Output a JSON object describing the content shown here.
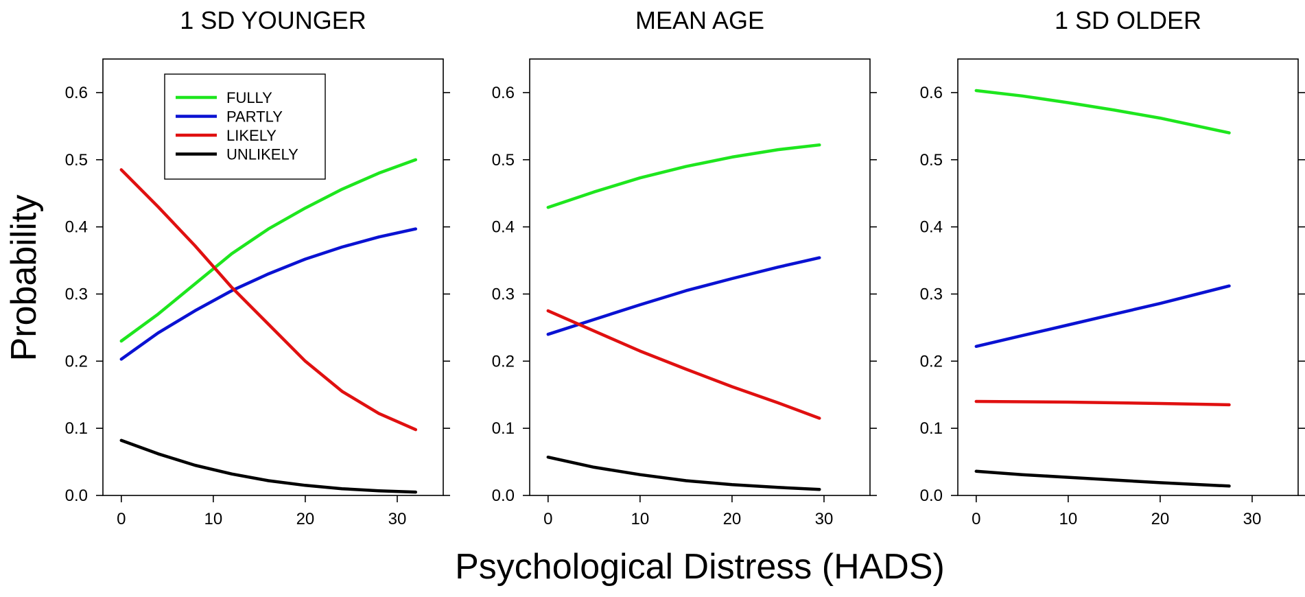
{
  "figure": {
    "ylabel": "Probability",
    "xlabel": "Psychological Distress (HADS)"
  },
  "legend": {
    "entries": [
      {
        "label": "FULLY",
        "color": "#1ee61e"
      },
      {
        "label": "PARTLY",
        "color": "#0a12d2"
      },
      {
        "label": "LIKELY",
        "color": "#e01010"
      },
      {
        "label": "UNLIKELY",
        "color": "#000000"
      }
    ]
  },
  "chart_data": [
    {
      "type": "line",
      "title": "1 SD YOUNGER",
      "xlim": [
        -2,
        35
      ],
      "ylim": [
        0,
        0.65
      ],
      "xticks": [
        0,
        10,
        20,
        30
      ],
      "yticks": [
        0.0,
        0.1,
        0.2,
        0.3,
        0.4,
        0.5,
        0.6
      ],
      "series": [
        {
          "name": "FULLY",
          "color": "#1ee61e",
          "x": [
            0,
            4,
            8,
            12,
            16,
            20,
            24,
            28,
            32
          ],
          "y": [
            0.23,
            0.27,
            0.315,
            0.36,
            0.397,
            0.428,
            0.456,
            0.48,
            0.5
          ]
        },
        {
          "name": "PARTLY",
          "color": "#0a12d2",
          "x": [
            0,
            4,
            8,
            12,
            16,
            20,
            24,
            28,
            32
          ],
          "y": [
            0.203,
            0.242,
            0.275,
            0.305,
            0.33,
            0.352,
            0.37,
            0.385,
            0.397
          ]
        },
        {
          "name": "LIKELY",
          "color": "#e01010",
          "x": [
            0,
            4,
            8,
            12,
            16,
            20,
            24,
            28,
            32
          ],
          "y": [
            0.485,
            0.43,
            0.372,
            0.31,
            0.255,
            0.2,
            0.155,
            0.122,
            0.098
          ]
        },
        {
          "name": "UNLIKELY",
          "color": "#000000",
          "x": [
            0,
            4,
            8,
            12,
            16,
            20,
            24,
            28,
            32
          ],
          "y": [
            0.082,
            0.062,
            0.045,
            0.032,
            0.022,
            0.015,
            0.01,
            0.007,
            0.005
          ]
        }
      ]
    },
    {
      "type": "line",
      "title": "MEAN AGE",
      "xlim": [
        -2,
        35
      ],
      "ylim": [
        0,
        0.65
      ],
      "xticks": [
        0,
        10,
        20,
        30
      ],
      "yticks": [
        0.0,
        0.1,
        0.2,
        0.3,
        0.4,
        0.5,
        0.6
      ],
      "series": [
        {
          "name": "FULLY",
          "color": "#1ee61e",
          "x": [
            0,
            5,
            10,
            15,
            20,
            25,
            29.5
          ],
          "y": [
            0.429,
            0.452,
            0.473,
            0.49,
            0.504,
            0.515,
            0.522
          ]
        },
        {
          "name": "PARTLY",
          "color": "#0a12d2",
          "x": [
            0,
            5,
            10,
            15,
            20,
            25,
            29.5
          ],
          "y": [
            0.24,
            0.262,
            0.284,
            0.305,
            0.323,
            0.34,
            0.354
          ]
        },
        {
          "name": "LIKELY",
          "color": "#e01010",
          "x": [
            0,
            5,
            10,
            15,
            20,
            25,
            29.5
          ],
          "y": [
            0.275,
            0.245,
            0.215,
            0.188,
            0.162,
            0.138,
            0.115
          ]
        },
        {
          "name": "UNLIKELY",
          "color": "#000000",
          "x": [
            0,
            5,
            10,
            15,
            20,
            25,
            29.5
          ],
          "y": [
            0.057,
            0.042,
            0.031,
            0.022,
            0.016,
            0.012,
            0.009
          ]
        }
      ]
    },
    {
      "type": "line",
      "title": "1 SD OLDER",
      "xlim": [
        -2,
        35
      ],
      "ylim": [
        0,
        0.65
      ],
      "xticks": [
        0,
        10,
        20,
        30
      ],
      "yticks": [
        0.0,
        0.1,
        0.2,
        0.3,
        0.4,
        0.5,
        0.6
      ],
      "series": [
        {
          "name": "FULLY",
          "color": "#1ee61e",
          "x": [
            0,
            5,
            10,
            15,
            20,
            27.5
          ],
          "y": [
            0.603,
            0.595,
            0.585,
            0.574,
            0.562,
            0.54
          ]
        },
        {
          "name": "PARTLY",
          "color": "#0a12d2",
          "x": [
            0,
            5,
            10,
            15,
            20,
            27.5
          ],
          "y": [
            0.222,
            0.238,
            0.254,
            0.27,
            0.286,
            0.312
          ]
        },
        {
          "name": "LIKELY",
          "color": "#e01010",
          "x": [
            0,
            10,
            20,
            27.5
          ],
          "y": [
            0.14,
            0.139,
            0.137,
            0.135
          ]
        },
        {
          "name": "UNLIKELY",
          "color": "#000000",
          "x": [
            0,
            5,
            10,
            15,
            20,
            27.5
          ],
          "y": [
            0.036,
            0.031,
            0.027,
            0.023,
            0.019,
            0.014
          ]
        }
      ]
    }
  ]
}
